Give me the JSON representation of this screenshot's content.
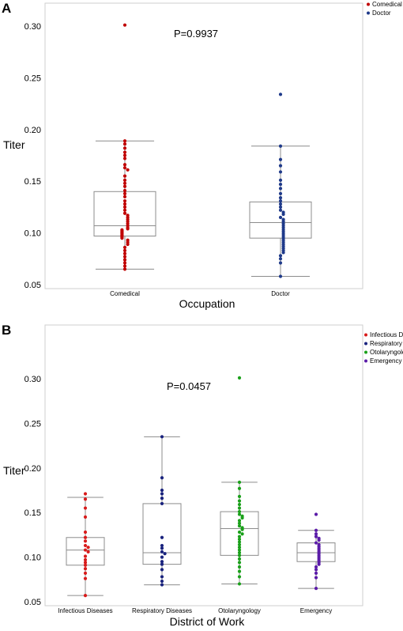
{
  "chart_data": [
    {
      "panel": "A",
      "type": "box",
      "annotation": "P=0.9937",
      "xlabel": "Occupation",
      "ylabel": "Titer",
      "ylim": [
        0.05,
        0.32
      ],
      "yticks": [
        "0.05",
        "0.10",
        "0.15",
        "0.20",
        "0.25",
        "0.30"
      ],
      "legend": {
        "placement": "top-right",
        "entries": [
          "Comedical",
          "Doctor"
        ]
      },
      "categories": [
        "Comedical",
        "Doctor"
      ],
      "series": [
        {
          "name": "Comedical",
          "color": "#c00000",
          "box": {
            "min": 0.065,
            "q1": 0.097,
            "median": 0.107,
            "q3": 0.14,
            "max": 0.189
          },
          "points": [
            0.301,
            0.189,
            0.186,
            0.182,
            0.178,
            0.175,
            0.172,
            0.166,
            0.163,
            0.161,
            0.155,
            0.151,
            0.148,
            0.145,
            0.141,
            0.138,
            0.135,
            0.131,
            0.128,
            0.125,
            0.122,
            0.119,
            0.117,
            0.115,
            0.113,
            0.111,
            0.109,
            0.107,
            0.105,
            0.104,
            0.103,
            0.102,
            0.101,
            0.1,
            0.099,
            0.098,
            0.097,
            0.096,
            0.095,
            0.093,
            0.091,
            0.089,
            0.086,
            0.083,
            0.08,
            0.077,
            0.074,
            0.071,
            0.068,
            0.065
          ]
        },
        {
          "name": "Doctor",
          "color": "#1f3a8a",
          "box": {
            "min": 0.058,
            "q1": 0.095,
            "median": 0.11,
            "q3": 0.13,
            "max": 0.184
          },
          "points": [
            0.234,
            0.184,
            0.171,
            0.165,
            0.159,
            0.151,
            0.147,
            0.143,
            0.138,
            0.134,
            0.131,
            0.128,
            0.125,
            0.122,
            0.12,
            0.118,
            0.115,
            0.113,
            0.111,
            0.109,
            0.107,
            0.105,
            0.103,
            0.101,
            0.099,
            0.097,
            0.095,
            0.093,
            0.091,
            0.089,
            0.087,
            0.085,
            0.083,
            0.081,
            0.078,
            0.075,
            0.071,
            0.058
          ]
        }
      ]
    },
    {
      "panel": "B",
      "type": "box",
      "annotation": "P=0.0457",
      "xlabel": "District of Work",
      "ylabel": "Titer",
      "ylim": [
        0.05,
        0.32
      ],
      "yticks": [
        "0.05",
        "0.10",
        "0.15",
        "0.20",
        "0.25",
        "0.30"
      ],
      "legend": {
        "placement": "top-right",
        "entries": [
          "Infectious Diseases",
          "Respiratory Diseases",
          "Otolaryngology",
          "Emergency"
        ]
      },
      "categories": [
        "Infectious Diseases",
        "Respiratory Diseases",
        "Otolaryngology",
        "Emergency"
      ],
      "series": [
        {
          "name": "Infectious Diseases",
          "color": "#d81b1b",
          "box": {
            "min": 0.057,
            "q1": 0.091,
            "median": 0.108,
            "q3": 0.122,
            "max": 0.167
          },
          "points": [
            0.171,
            0.165,
            0.155,
            0.145,
            0.128,
            0.122,
            0.118,
            0.113,
            0.111,
            0.108,
            0.106,
            0.101,
            0.097,
            0.094,
            0.091,
            0.087,
            0.082,
            0.076,
            0.057
          ]
        },
        {
          "name": "Respiratory Diseases",
          "color": "#1a237e",
          "box": {
            "min": 0.069,
            "q1": 0.092,
            "median": 0.105,
            "q3": 0.16,
            "max": 0.235
          },
          "points": [
            0.235,
            0.189,
            0.175,
            0.171,
            0.166,
            0.16,
            0.122,
            0.113,
            0.11,
            0.106,
            0.104,
            0.1,
            0.095,
            0.092,
            0.086,
            0.078,
            0.073,
            0.069
          ]
        },
        {
          "name": "Otolaryngology",
          "color": "#1aa01a",
          "box": {
            "min": 0.07,
            "q1": 0.102,
            "median": 0.132,
            "q3": 0.151,
            "max": 0.184
          },
          "points": [
            0.301,
            0.184,
            0.177,
            0.168,
            0.163,
            0.159,
            0.155,
            0.151,
            0.148,
            0.146,
            0.144,
            0.141,
            0.138,
            0.135,
            0.133,
            0.131,
            0.128,
            0.126,
            0.123,
            0.12,
            0.117,
            0.114,
            0.111,
            0.108,
            0.105,
            0.102,
            0.098,
            0.094,
            0.089,
            0.084,
            0.078,
            0.07
          ]
        },
        {
          "name": "Emergency",
          "color": "#5b1ca8",
          "box": {
            "min": 0.065,
            "q1": 0.095,
            "median": 0.105,
            "q3": 0.116,
            "max": 0.13
          },
          "points": [
            0.148,
            0.13,
            0.126,
            0.123,
            0.121,
            0.119,
            0.116,
            0.114,
            0.112,
            0.11,
            0.108,
            0.106,
            0.104,
            0.102,
            0.1,
            0.098,
            0.096,
            0.094,
            0.092,
            0.089,
            0.086,
            0.082,
            0.077,
            0.065
          ]
        }
      ]
    }
  ]
}
